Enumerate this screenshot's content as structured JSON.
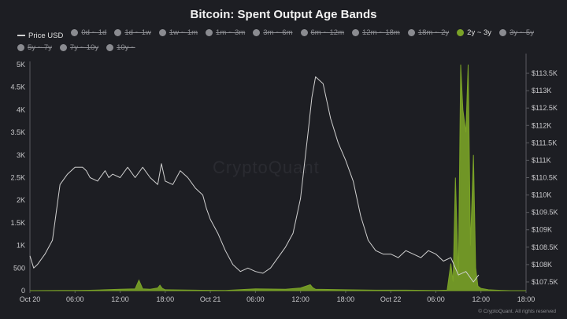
{
  "chart_data": {
    "type": "line",
    "title": "Bitcoin: Spent Output Age Bands",
    "legend": [
      {
        "name": "Price USD",
        "active": true,
        "kind": "line"
      },
      {
        "name": "0d ~ 1d",
        "active": false
      },
      {
        "name": "1d ~ 1w",
        "active": false
      },
      {
        "name": "1w ~ 1m",
        "active": false
      },
      {
        "name": "1m ~ 3m",
        "active": false
      },
      {
        "name": "3m ~ 6m",
        "active": false
      },
      {
        "name": "6m ~ 12m",
        "active": false
      },
      {
        "name": "12m ~ 18m",
        "active": false
      },
      {
        "name": "18m ~ 2y",
        "active": false
      },
      {
        "name": "2y ~ 3y",
        "active": true
      },
      {
        "name": "3y ~ 5y",
        "active": false
      },
      {
        "name": "5y ~ 7y",
        "active": false
      },
      {
        "name": "7y ~ 10y",
        "active": false
      },
      {
        "name": "10y ~",
        "active": false
      }
    ],
    "x_ticks": [
      "Oct 20",
      "06:00",
      "12:00",
      "18:00",
      "Oct 21",
      "06:00",
      "12:00",
      "18:00",
      "Oct 22",
      "06:00",
      "12:00",
      "18:00"
    ],
    "x_range_hours": [
      0,
      66
    ],
    "y_left": {
      "min": 0,
      "max": 5000,
      "ticks": [
        "0",
        "500",
        "1K",
        "1.5K",
        "2K",
        "2.5K",
        "3K",
        "3.5K",
        "4K",
        "4.5K",
        "5K"
      ]
    },
    "y_right": {
      "min": 107250,
      "max": 113750,
      "ticks": [
        "$107.5K",
        "$108K",
        "$108.5K",
        "$109K",
        "$109.5K",
        "$110K",
        "$110.5K",
        "$111K",
        "$111.5K",
        "$112K",
        "$112.5K",
        "$113K",
        "$113.5K"
      ]
    },
    "series": [
      {
        "name": "Price USD",
        "axis": "right",
        "color": "#d0d0d0",
        "x": [
          0,
          0.5,
          1,
          2,
          3,
          4,
          5,
          6,
          7,
          7.5,
          8,
          9,
          10,
          10.5,
          11,
          12,
          13,
          14,
          15,
          16,
          17,
          17.5,
          18,
          19,
          20,
          21,
          22,
          23,
          23.5,
          24,
          25,
          26,
          27,
          28,
          29,
          30,
          31,
          32,
          33,
          34,
          35,
          36,
          37,
          37.5,
          38,
          39,
          40,
          41,
          42,
          43,
          44,
          45,
          46,
          47,
          48,
          49,
          50,
          51,
          52,
          53,
          54,
          55,
          56,
          57,
          58,
          59,
          59.7
        ],
        "y": [
          108250,
          107900,
          108000,
          108300,
          108700,
          110300,
          110600,
          110800,
          110800,
          110700,
          110500,
          110400,
          110700,
          110500,
          110600,
          110500,
          110800,
          110500,
          110800,
          110500,
          110300,
          110900,
          110400,
          110300,
          110700,
          110500,
          110200,
          110000,
          109600,
          109300,
          108900,
          108400,
          108000,
          107800,
          107900,
          107800,
          107750,
          107900,
          108200,
          108500,
          108900,
          109900,
          111800,
          112800,
          113400,
          113200,
          112200,
          111500,
          111000,
          110400,
          109400,
          108700,
          108400,
          108300,
          108300,
          108200,
          108400,
          108300,
          108200,
          108400,
          108300,
          108100,
          108200,
          107700,
          107800,
          107500,
          107700
        ]
      },
      {
        "name": "2y ~ 3y",
        "axis": "left",
        "color": "#7aa227",
        "x": [
          0,
          2,
          4,
          6,
          8,
          10,
          12,
          14,
          14.5,
          15,
          16,
          17,
          17.3,
          17.6,
          18,
          22,
          26,
          30,
          34,
          36,
          37.3,
          37.6,
          38,
          42,
          46,
          50,
          54,
          55.5,
          56,
          56.3,
          56.6,
          57,
          57.3,
          57.6,
          58,
          58.3,
          58.6,
          59,
          59.3,
          59.6,
          60,
          61,
          62,
          64,
          66
        ],
        "y": [
          0,
          2,
          3,
          5,
          8,
          20,
          30,
          40,
          230,
          40,
          30,
          60,
          120,
          50,
          20,
          10,
          5,
          40,
          30,
          60,
          130,
          70,
          30,
          20,
          10,
          10,
          5,
          10,
          600,
          200,
          2500,
          300,
          5000,
          4000,
          3500,
          5000,
          1000,
          3000,
          500,
          100,
          50,
          20,
          10,
          0,
          0
        ]
      }
    ],
    "watermark": "CryptoQuant",
    "credit": "© CryptoQuant. All rights reserved"
  }
}
